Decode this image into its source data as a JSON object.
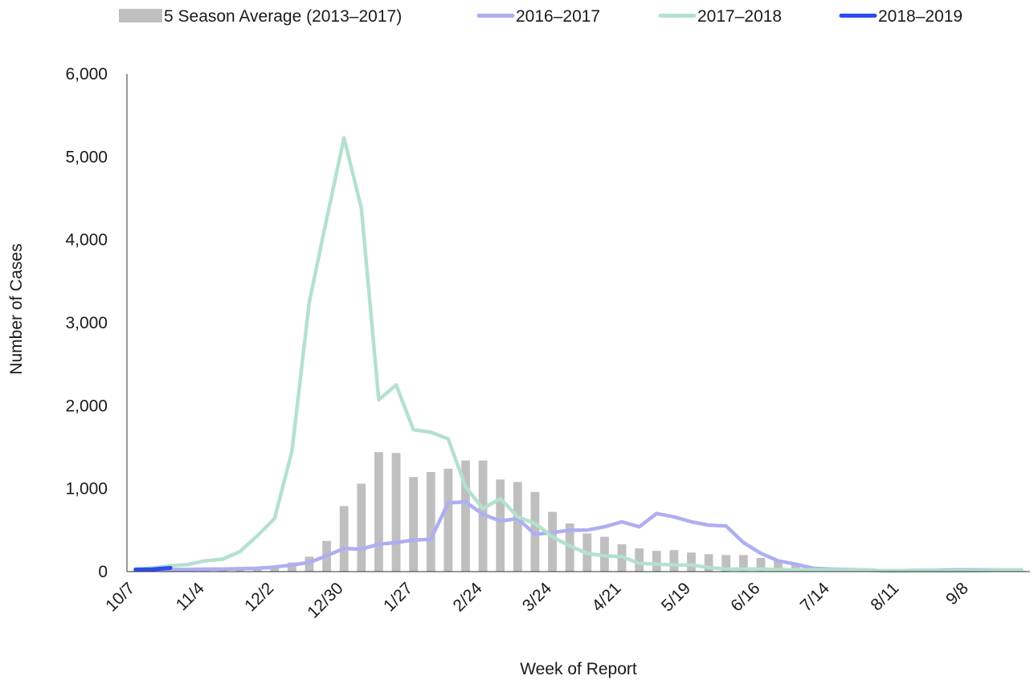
{
  "chart_data": {
    "type": "bar",
    "title": "",
    "xlabel": "Week of Report",
    "ylabel": "Number of Cases",
    "ylim": [
      0,
      6000
    ],
    "y_ticks": [
      "0",
      "1,000",
      "2,000",
      "3,000",
      "4,000",
      "5,000",
      "6,000"
    ],
    "x_tick_labels": [
      "10/7",
      "11/4",
      "12/2",
      "12/30",
      "1/27",
      "2/24",
      "3/24",
      "4/21",
      "5/19",
      "6/16",
      "7/14",
      "8/11",
      "9/8"
    ],
    "grid": false,
    "legend_position": "top",
    "weeks": [
      "10/7",
      "10/14",
      "10/21",
      "10/28",
      "11/4",
      "11/11",
      "11/18",
      "11/25",
      "12/2",
      "12/9",
      "12/16",
      "12/23",
      "12/30",
      "1/6",
      "1/13",
      "1/20",
      "1/27",
      "2/3",
      "2/10",
      "2/17",
      "2/24",
      "3/3",
      "3/10",
      "3/17",
      "3/24",
      "3/31",
      "4/7",
      "4/14",
      "4/21",
      "4/28",
      "5/5",
      "5/12",
      "5/19",
      "5/26",
      "6/2",
      "6/9",
      "6/16",
      "6/23",
      "6/30",
      "7/7",
      "7/14",
      "7/21",
      "7/28",
      "8/4",
      "8/11",
      "8/18",
      "8/25",
      "9/1",
      "9/8",
      "9/15",
      "9/22",
      "9/29"
    ],
    "series": [
      {
        "name": "5 Season Average (2013–2017)",
        "kind": "bar",
        "color": "#bfbfbf",
        "values": [
          10,
          15,
          20,
          25,
          30,
          35,
          40,
          50,
          60,
          110,
          180,
          370,
          790,
          1060,
          1440,
          1430,
          1140,
          1200,
          1240,
          1340,
          1340,
          1110,
          1080,
          960,
          720,
          580,
          460,
          420,
          330,
          280,
          250,
          260,
          230,
          210,
          200,
          200,
          165,
          130,
          80,
          50,
          30,
          20,
          15,
          12,
          10,
          10,
          10,
          10,
          10,
          10,
          10,
          10
        ]
      },
      {
        "name": "2016–2017",
        "kind": "line",
        "color": "#aeaef2",
        "values": [
          20,
          20,
          25,
          25,
          30,
          30,
          35,
          40,
          55,
          80,
          110,
          190,
          280,
          270,
          330,
          350,
          380,
          390,
          830,
          840,
          690,
          610,
          640,
          450,
          470,
          500,
          500,
          540,
          600,
          540,
          700,
          660,
          600,
          560,
          550,
          350,
          220,
          130,
          90,
          40,
          30,
          25,
          20,
          10,
          10,
          15,
          15,
          20,
          20,
          20,
          20,
          20
        ]
      },
      {
        "name": "2017–2018",
        "kind": "line",
        "color": "#b4e1cd",
        "values": [
          20,
          45,
          70,
          85,
          130,
          150,
          240,
          430,
          640,
          1450,
          3250,
          4250,
          5230,
          4380,
          2070,
          2250,
          1710,
          1680,
          1600,
          1020,
          760,
          880,
          660,
          580,
          420,
          310,
          220,
          190,
          180,
          100,
          90,
          80,
          80,
          50,
          30,
          30,
          30,
          25,
          20,
          20,
          20,
          20,
          20,
          10,
          10,
          10,
          10,
          10,
          10,
          15,
          20,
          20
        ]
      },
      {
        "name": "2018–2019",
        "kind": "line",
        "color": "#2b4cf2",
        "values": [
          25,
          28,
          45
        ]
      }
    ]
  }
}
